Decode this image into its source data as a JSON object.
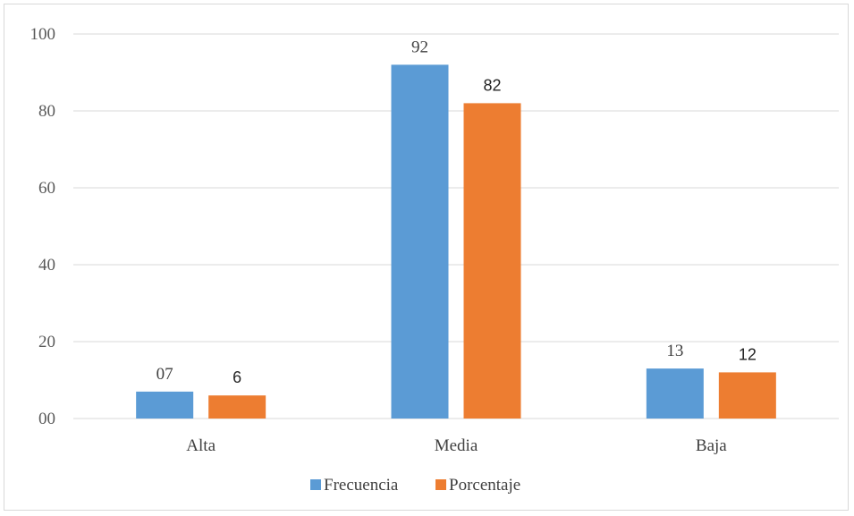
{
  "chart_data": {
    "type": "bar",
    "categories": [
      "Alta",
      "Media",
      "Baja"
    ],
    "series": [
      {
        "name": "Frecuencia",
        "values": [
          7,
          92,
          13
        ],
        "labels": [
          "07",
          "92",
          "13"
        ],
        "color": "#5b9bd5"
      },
      {
        "name": "Porcentaje",
        "values": [
          6,
          82,
          12
        ],
        "labels": [
          "6",
          "82",
          "12"
        ],
        "color": "#ed7d31"
      }
    ],
    "yticks": [
      "00",
      "20",
      "40",
      "60",
      "80",
      "100"
    ],
    "ytick_values": [
      0,
      20,
      40,
      60,
      80,
      100
    ],
    "ylim": [
      0,
      100
    ],
    "grid": true,
    "legend_position": "bottom",
    "gridline_color": "#d9d9d9"
  }
}
